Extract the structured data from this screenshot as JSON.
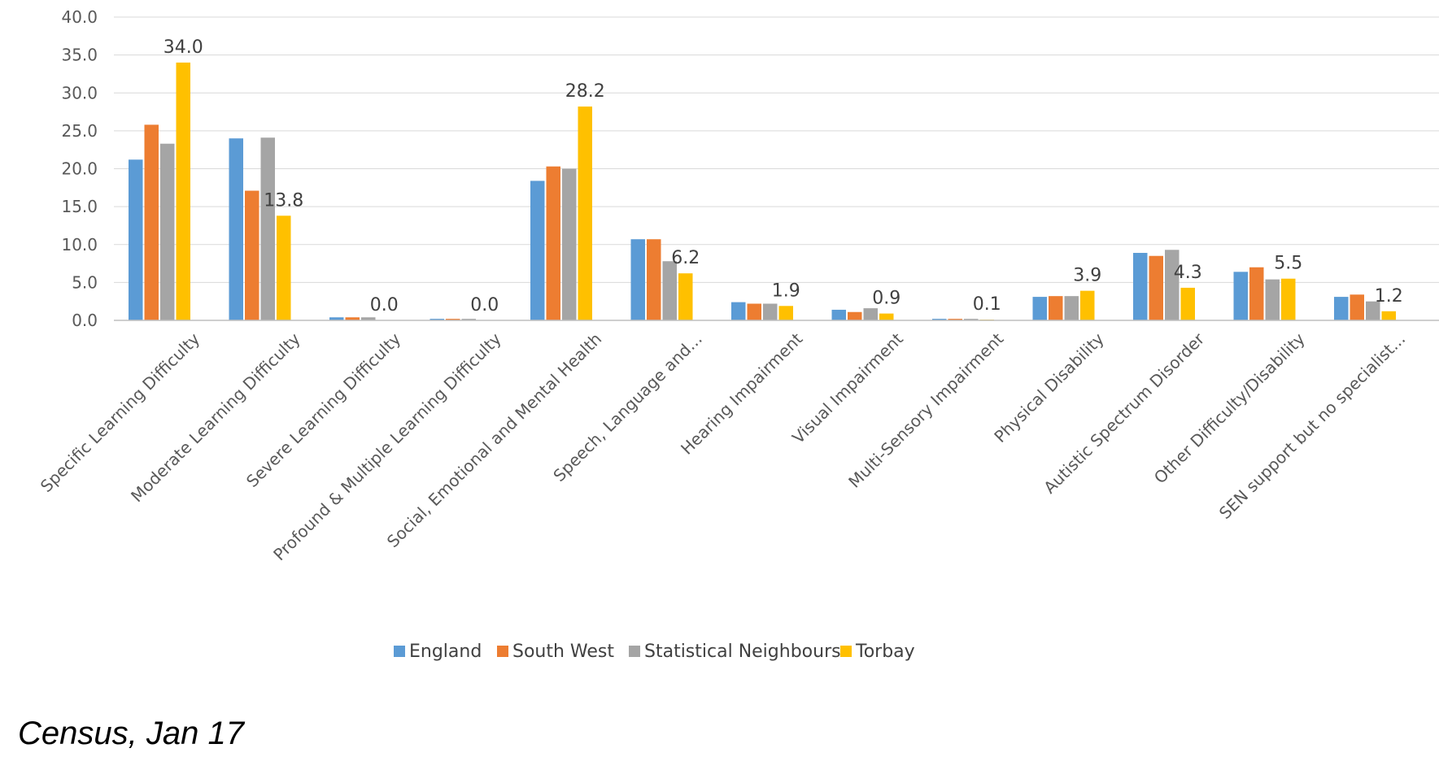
{
  "footnote": "Census, Jan 17",
  "chart_data": {
    "type": "bar",
    "title": "",
    "xlabel": "",
    "ylabel": "",
    "ylim": [
      0,
      40
    ],
    "yticks": [
      "0.0",
      "5.0",
      "10.0",
      "15.0",
      "20.0",
      "25.0",
      "30.0",
      "35.0",
      "40.0"
    ],
    "grid": "horizontal",
    "legend": "bottom",
    "categories": [
      "Specific Learning Difficulty",
      "Moderate Learning Difficulty",
      "Severe Learning Difficulty",
      "Profound & Multiple Learning Difficulty",
      "Social, Emotional and Mental Health",
      "Speech, Language and...",
      "Hearing Impairment",
      "Visual Impairment",
      "Multi-Sensory Impairment",
      "Physical Disability",
      "Autistic Spectrum Disorder",
      "Other Difficulty/Disability",
      "SEN support but no specialist..."
    ],
    "series": [
      {
        "name": "England",
        "color": "#5B9BD5",
        "values": [
          21.2,
          24.0,
          0.4,
          0.2,
          18.4,
          10.7,
          2.4,
          1.4,
          0.2,
          3.1,
          8.9,
          6.4,
          3.1
        ]
      },
      {
        "name": "South West",
        "color": "#ED7D31",
        "values": [
          25.8,
          17.1,
          0.4,
          0.2,
          20.3,
          10.7,
          2.2,
          1.1,
          0.2,
          3.2,
          8.5,
          7.0,
          3.4
        ]
      },
      {
        "name": "Statistical Neighbours",
        "color": "#A5A5A5",
        "values": [
          23.3,
          24.1,
          0.4,
          0.2,
          20.0,
          7.8,
          2.2,
          1.6,
          0.2,
          3.2,
          9.3,
          5.4,
          2.5
        ]
      },
      {
        "name": "Torbay",
        "color": "#FFC000",
        "values": [
          34.0,
          13.8,
          0.0,
          0.0,
          28.2,
          6.2,
          1.9,
          0.9,
          0.1,
          3.9,
          4.3,
          5.5,
          1.2
        ],
        "data_labels": [
          "34.0",
          "13.8",
          "0.0",
          "0.0",
          "28.2",
          "6.2",
          "1.9",
          "0.9",
          "0.1",
          "3.9",
          "4.3",
          "5.5",
          "1.2"
        ]
      }
    ]
  }
}
